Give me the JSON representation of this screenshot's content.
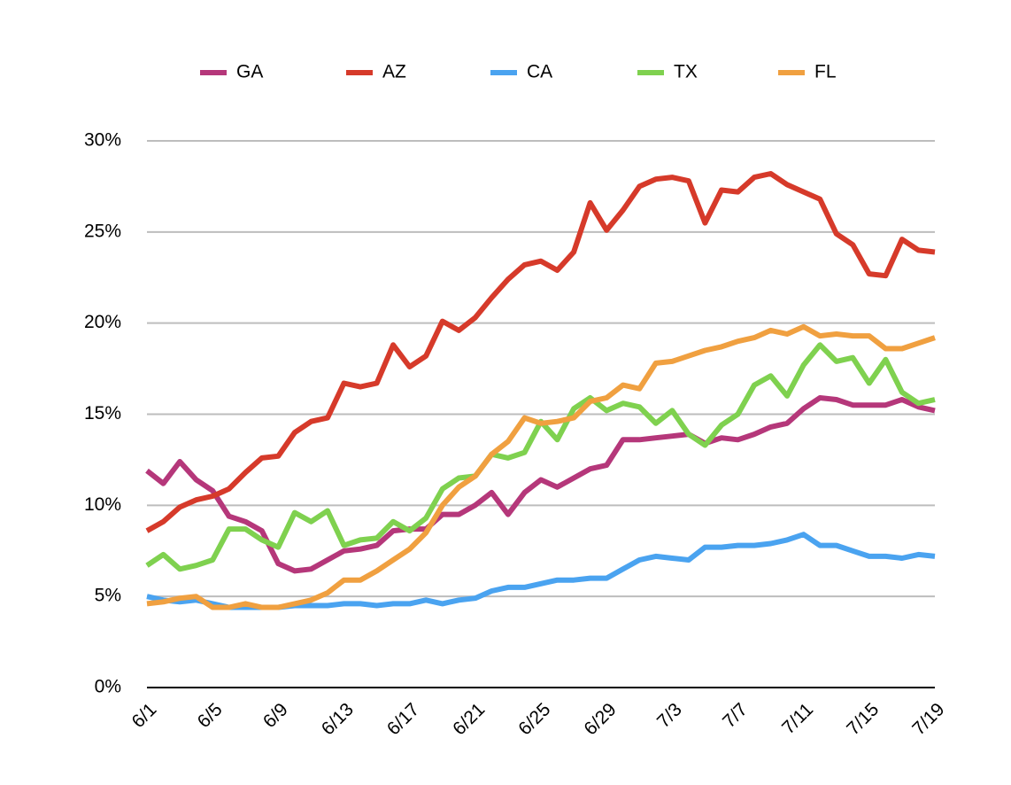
{
  "chart_data": {
    "type": "line",
    "categories": [
      "6/1",
      null,
      null,
      null,
      "6/5",
      null,
      null,
      null,
      "6/9",
      null,
      null,
      null,
      "6/13",
      null,
      null,
      null,
      "6/17",
      null,
      null,
      null,
      "6/21",
      null,
      null,
      null,
      "6/25",
      null,
      null,
      null,
      "6/29",
      null,
      null,
      null,
      "7/3",
      null,
      null,
      null,
      "7/7",
      null,
      null,
      null,
      "7/11",
      null,
      null,
      null,
      "7/15",
      null,
      null,
      null,
      "7/19"
    ],
    "series": [
      {
        "name": "GA",
        "color": "#b5377a",
        "values": [
          11.9,
          11.2,
          12.4,
          11.4,
          10.8,
          9.4,
          9.1,
          8.6,
          6.8,
          6.4,
          6.5,
          7.0,
          7.5,
          7.6,
          7.8,
          8.6,
          8.7,
          8.7,
          9.5,
          9.5,
          10.0,
          10.7,
          9.5,
          10.7,
          11.4,
          11.0,
          11.5,
          12.0,
          12.2,
          13.6,
          13.6,
          13.7,
          13.8,
          13.9,
          13.4,
          13.7,
          13.6,
          13.9,
          14.3,
          14.5,
          15.3,
          15.9,
          15.8,
          15.5,
          15.5,
          15.5,
          15.8,
          15.4,
          15.2
        ]
      },
      {
        "name": "AZ",
        "color": "#d63a2a",
        "values": [
          8.6,
          9.1,
          9.9,
          10.3,
          10.5,
          10.9,
          11.8,
          12.6,
          12.7,
          14.0,
          14.6,
          14.8,
          16.7,
          16.5,
          16.7,
          18.8,
          17.6,
          18.2,
          20.1,
          19.6,
          20.3,
          21.4,
          22.4,
          23.2,
          23.4,
          22.9,
          23.9,
          26.6,
          25.1,
          26.2,
          27.5,
          27.9,
          28.0,
          27.8,
          25.5,
          27.3,
          27.2,
          28.0,
          28.2,
          27.6,
          27.2,
          26.8,
          24.9,
          24.3,
          22.7,
          22.6,
          24.6,
          24.0,
          23.9
        ]
      },
      {
        "name": "CA",
        "color": "#4aa3f0",
        "values": [
          5.0,
          4.8,
          4.7,
          4.8,
          4.6,
          4.4,
          4.4,
          4.4,
          4.4,
          4.5,
          4.5,
          4.5,
          4.6,
          4.6,
          4.5,
          4.6,
          4.6,
          4.8,
          4.6,
          4.8,
          4.9,
          5.3,
          5.5,
          5.5,
          5.7,
          5.9,
          5.9,
          6.0,
          6.0,
          6.5,
          7.0,
          7.2,
          7.1,
          7.0,
          7.7,
          7.7,
          7.8,
          7.8,
          7.9,
          8.1,
          8.4,
          7.8,
          7.8,
          7.5,
          7.2,
          7.2,
          7.1,
          7.3,
          7.2
        ]
      },
      {
        "name": "TX",
        "color": "#7fd14f",
        "values": [
          6.7,
          7.3,
          6.5,
          6.7,
          7.0,
          8.7,
          8.7,
          8.1,
          7.7,
          9.6,
          9.1,
          9.7,
          7.8,
          8.1,
          8.2,
          9.1,
          8.6,
          9.3,
          10.9,
          11.5,
          11.6,
          12.8,
          12.6,
          12.9,
          14.6,
          13.6,
          15.3,
          15.9,
          15.2,
          15.6,
          15.4,
          14.5,
          15.2,
          13.9,
          13.3,
          14.4,
          15.0,
          16.6,
          17.1,
          16.0,
          17.7,
          18.8,
          17.9,
          18.1,
          16.7,
          18.0,
          16.2,
          15.6,
          15.8
        ]
      },
      {
        "name": "FL",
        "color": "#f0a040",
        "values": [
          4.6,
          4.7,
          4.9,
          5.0,
          4.4,
          4.4,
          4.6,
          4.4,
          4.4,
          4.6,
          4.8,
          5.2,
          5.9,
          5.9,
          6.4,
          7.0,
          7.6,
          8.5,
          10.0,
          11.0,
          11.6,
          12.8,
          13.5,
          14.8,
          14.5,
          14.6,
          14.8,
          15.7,
          15.9,
          16.6,
          16.4,
          17.8,
          17.9,
          18.2,
          18.5,
          18.7,
          19.0,
          19.2,
          19.6,
          19.4,
          19.8,
          19.3,
          19.4,
          19.3,
          19.3,
          18.6,
          18.6,
          18.9,
          19.2
        ]
      }
    ],
    "ylim": [
      0,
      30
    ],
    "yticks": [
      {
        "value": 0,
        "label": "0%"
      },
      {
        "value": 5,
        "label": "5%"
      },
      {
        "value": 10,
        "label": "10%"
      },
      {
        "value": 15,
        "label": "15%"
      },
      {
        "value": 20,
        "label": "20%"
      },
      {
        "value": 25,
        "label": "25%"
      },
      {
        "value": 30,
        "label": "30%"
      }
    ],
    "grid": true
  }
}
